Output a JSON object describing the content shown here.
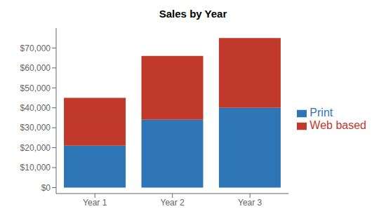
{
  "chart_data": {
    "type": "bar",
    "title": "Sales by Year",
    "categories": [
      "Year 1",
      "Year 2",
      "Year 3"
    ],
    "series": [
      {
        "name": "Print",
        "color": "#2E75B6",
        "values": [
          21000,
          34000,
          40000
        ]
      },
      {
        "name": "Web based",
        "color": "#C0392B",
        "values": [
          24000,
          32000,
          35000
        ]
      }
    ],
    "stacked": true,
    "ylim": [
      -3000,
      80000
    ],
    "yticks": [
      {
        "value": 0,
        "label": "$0"
      },
      {
        "value": 10000,
        "label": "$10,000"
      },
      {
        "value": 20000,
        "label": "$20,000"
      },
      {
        "value": 30000,
        "label": "$30,000"
      },
      {
        "value": 40000,
        "label": "$40,000"
      },
      {
        "value": 50000,
        "label": "$50,000"
      },
      {
        "value": 60000,
        "label": "$60,000"
      },
      {
        "value": 70000,
        "label": "$70,000"
      }
    ],
    "grid": false,
    "legend": "right"
  }
}
